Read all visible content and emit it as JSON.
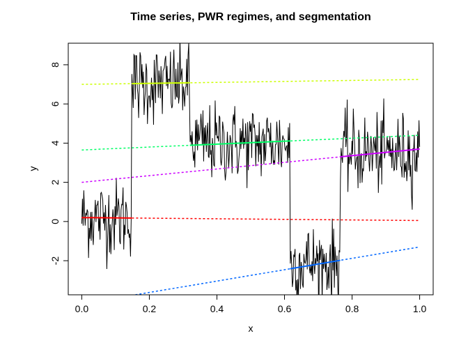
{
  "chart_data": {
    "type": "line",
    "title": "Time series, PWR regimes, and segmentation",
    "xlabel": "x",
    "ylabel": "y",
    "xlim": [
      -0.04,
      1.04
    ],
    "ylim": [
      -3.74,
      9.1
    ],
    "xticks": [
      0.0,
      0.2,
      0.4,
      0.6,
      0.8,
      1.0
    ],
    "xtick_labels": [
      "0.0",
      "0.2",
      "0.4",
      "0.6",
      "0.8",
      "1.0"
    ],
    "yticks": [
      -2,
      0,
      2,
      4,
      6,
      8
    ],
    "ytick_labels": [
      "-2",
      "0",
      "2",
      "4",
      "6",
      "8"
    ],
    "grid": false,
    "series_color": "#000000",
    "n_points": 500,
    "segments": [
      {
        "x_start": 0.0,
        "x_end": 0.148,
        "mean": 0.2
      },
      {
        "x_start": 0.148,
        "x_end": 0.32,
        "mean": 7.0
      },
      {
        "x_start": 0.32,
        "x_end": 0.617,
        "mean": 4.0
      },
      {
        "x_start": 0.617,
        "x_end": 0.765,
        "mean": -2.1
      },
      {
        "x_start": 0.765,
        "x_end": 1.0,
        "mean": 3.5
      }
    ],
    "noise_sd": 1.0,
    "regimes": [
      {
        "color": "#FF0000",
        "intercept": 0.2,
        "slope": -0.15,
        "active": [
          0.0,
          0.148
        ]
      },
      {
        "color": "#CCFF00",
        "intercept": 7.0,
        "slope": 0.25,
        "active": [
          0.148,
          0.32
        ]
      },
      {
        "color": "#00FF66",
        "intercept": 3.65,
        "slope": 0.75,
        "active": [
          0.32,
          0.617
        ]
      },
      {
        "color": "#0066FF",
        "intercept": -4.2,
        "slope": 2.9,
        "active": [
          0.617,
          0.765
        ]
      },
      {
        "color": "#CC00FF",
        "intercept": 2.0,
        "slope": 1.7,
        "active": [
          0.765,
          1.0
        ]
      }
    ]
  }
}
